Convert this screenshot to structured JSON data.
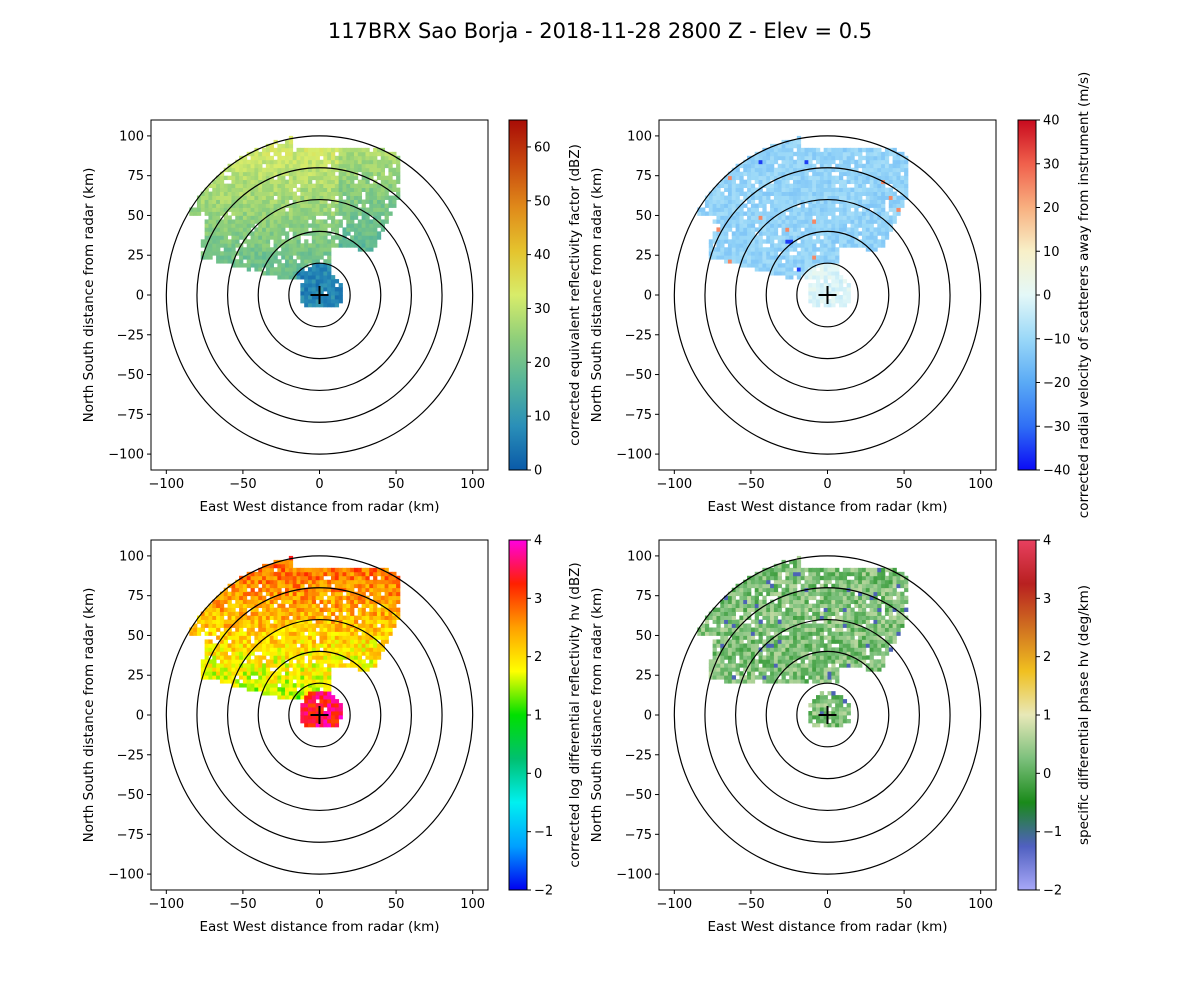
{
  "title": "117BRX Sao Borja - 2018-11-28 2800 Z -  Elev = 0.5",
  "chart_data": [
    {
      "type": "heatmap",
      "field": "reflectivity",
      "xlabel": "East West distance from radar (km)",
      "ylabel": "North South distance from radar (km)",
      "xlim": [
        -110,
        110
      ],
      "ylim": [
        -110,
        110
      ],
      "xticks": [
        -100,
        -50,
        0,
        50,
        100
      ],
      "yticks": [
        -100,
        -75,
        -50,
        -25,
        0,
        25,
        50,
        75,
        100
      ],
      "range_rings_km": [
        20,
        40,
        60,
        80,
        100
      ],
      "colorbar": {
        "label": "corrected equivalent reflectivity factor (dBZ)",
        "min": 0,
        "max": 65,
        "ticks": [
          0,
          10,
          20,
          30,
          40,
          50,
          60
        ],
        "colors": [
          "#0a5aa8",
          "#2a8fb8",
          "#55b49a",
          "#8fcf7a",
          "#d8ec6a",
          "#e4c42e",
          "#e08a1a",
          "#c8480e",
          "#a80c06"
        ]
      }
    },
    {
      "type": "heatmap",
      "field": "velocity",
      "xlabel": "East West distance from radar (km)",
      "ylabel": "North South distance from radar (km)",
      "xlim": [
        -110,
        110
      ],
      "ylim": [
        -110,
        110
      ],
      "xticks": [
        -100,
        -50,
        0,
        50,
        100
      ],
      "yticks": [
        -100,
        -75,
        -50,
        -25,
        0,
        25,
        50,
        75,
        100
      ],
      "range_rings_km": [
        20,
        40,
        60,
        80,
        100
      ],
      "colorbar": {
        "label": "corrected radial velocity of scatterers away from instrument (m/s)",
        "min": -40,
        "max": 40,
        "ticks": [
          -40,
          -30,
          -20,
          -10,
          0,
          10,
          20,
          30,
          40
        ],
        "colors": [
          "#0b0bf5",
          "#2f6ff5",
          "#5aaaf5",
          "#9ad8f8",
          "#e4f8f8",
          "#f8f0c8",
          "#f8b080",
          "#f0604c",
          "#c80a1e"
        ]
      }
    },
    {
      "type": "heatmap",
      "field": "differential_reflectivity",
      "xlabel": "East West distance from radar (km)",
      "ylabel": "North South distance from radar (km)",
      "xlim": [
        -110,
        110
      ],
      "ylim": [
        -110,
        110
      ],
      "xticks": [
        -100,
        -50,
        0,
        50,
        100
      ],
      "yticks": [
        -100,
        -75,
        -50,
        -25,
        0,
        25,
        50,
        75,
        100
      ],
      "range_rings_km": [
        20,
        40,
        60,
        80,
        100
      ],
      "colorbar": {
        "label": "corrected log differential reflectivity hv (dBZ)",
        "min": -2,
        "max": 4,
        "ticks": [
          -2,
          -1,
          0,
          1,
          2,
          3,
          4
        ],
        "colors": [
          "#0000f0",
          "#00a0ff",
          "#00f0f0",
          "#00c070",
          "#00e000",
          "#ffff00",
          "#ffa000",
          "#ff2000",
          "#ff00e0"
        ]
      }
    },
    {
      "type": "heatmap",
      "field": "specific_differential_phase",
      "xlabel": "East West distance from radar (km)",
      "ylabel": "North South distance from radar (km)",
      "xlim": [
        -110,
        110
      ],
      "ylim": [
        -110,
        110
      ],
      "xticks": [
        -100,
        -50,
        0,
        50,
        100
      ],
      "yticks": [
        -100,
        -75,
        -50,
        -25,
        0,
        25,
        50,
        75,
        100
      ],
      "range_rings_km": [
        20,
        40,
        60,
        80,
        100
      ],
      "colorbar": {
        "label": "specific differential phase hv (deg/km)",
        "min": -2,
        "max": 4,
        "ticks": [
          -2,
          -1,
          0,
          1,
          2,
          3,
          4
        ],
        "colors": [
          "#a8a8f8",
          "#5060c0",
          "#1a8a1a",
          "#7cc07c",
          "#e8e8b8",
          "#f0c020",
          "#d07020",
          "#b82020",
          "#e84060"
        ]
      }
    }
  ]
}
